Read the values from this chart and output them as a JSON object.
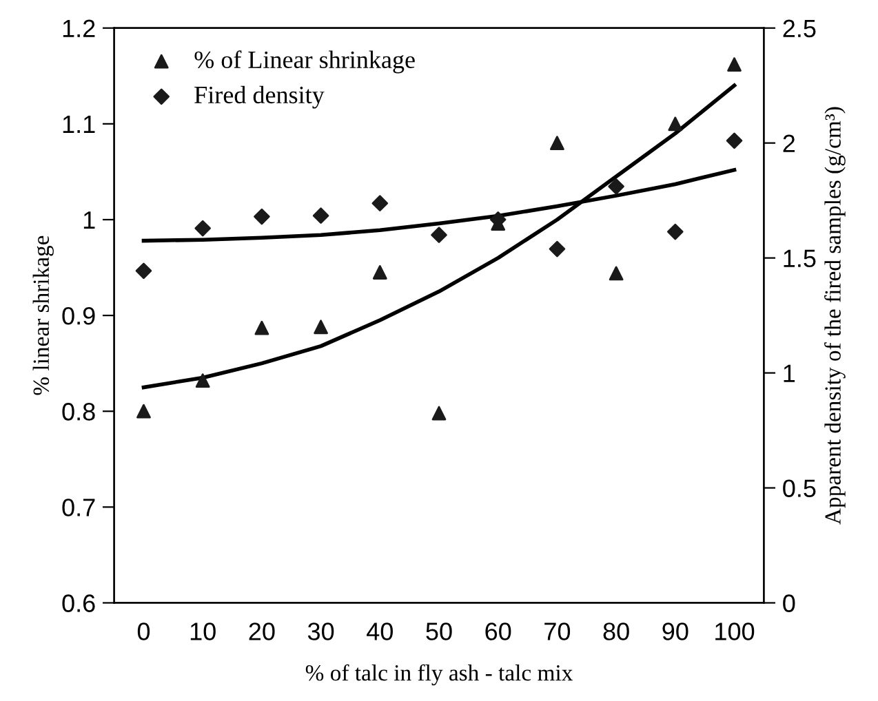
{
  "chart_data": {
    "type": "scatter",
    "xlabel": "% of talc in fly ash - talc mix",
    "ylabel": "% linear shrikage",
    "y2label": "Apparent density of the fired samples (g/cm³)",
    "categories": [
      "0",
      "10",
      "20",
      "30",
      "40",
      "50",
      "60",
      "70",
      "80",
      "90",
      "100"
    ],
    "series": [
      {
        "name": "% of Linear shrinkage",
        "marker": "triangle",
        "color": "#1a1a1a",
        "values": [
          0.8,
          0.832,
          0.887,
          0.888,
          0.945,
          0.798,
          0.996,
          1.08,
          0.944,
          1.1,
          1.162
        ]
      },
      {
        "name": "Fired density",
        "marker": "diamond",
        "color": "#1a1a1a",
        "axis": "y2",
        "values": [
          1.444,
          1.629,
          1.68,
          1.684,
          1.738,
          1.6,
          1.667,
          1.539,
          1.811,
          1.614,
          2.01
        ]
      },
      {
        "type": "line",
        "color": "#000000",
        "values": [
          0.825,
          0.835,
          0.85,
          0.868,
          0.895,
          0.925,
          0.96,
          1.0,
          1.045,
          1.09,
          1.14
        ]
      },
      {
        "type": "line",
        "color": "#000000",
        "axis": "y2",
        "values": [
          1.575,
          1.579,
          1.588,
          1.6,
          1.621,
          1.65,
          1.683,
          1.725,
          1.771,
          1.821,
          1.883
        ]
      }
    ],
    "ylim": [
      0.6,
      1.2
    ],
    "yticks": [
      0.6,
      0.7,
      0.8,
      0.9,
      1,
      1.1,
      1.2
    ],
    "y2lim": [
      0,
      2.5
    ],
    "y2ticks": [
      0,
      0.5,
      1,
      1.5,
      2,
      2.5
    ],
    "grid": false,
    "legend": "top left"
  }
}
